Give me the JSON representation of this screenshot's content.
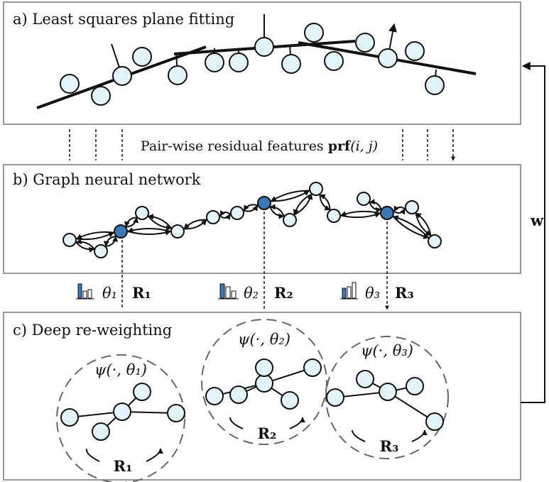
{
  "panels": [
    {
      "label": "a) Least squares plane fitting"
    },
    {
      "label": "b) Graph neural network"
    },
    {
      "label": "c) Deep re-weighting"
    }
  ],
  "features": {
    "text": "Pair-wise residual features",
    "symbol": "prf",
    "args": "(i, j)"
  },
  "clusters": [
    {
      "theta": "θ₁",
      "rotation": "R₁",
      "kernel": "ψ(·, θ₁)"
    },
    {
      "theta": "θ₂",
      "rotation": "R₂",
      "kernel": "ψ(·, θ₂)"
    },
    {
      "theta": "θ₃",
      "rotation": "R₃",
      "kernel": "ψ(·, θ₃)"
    }
  ],
  "weights": "w"
}
